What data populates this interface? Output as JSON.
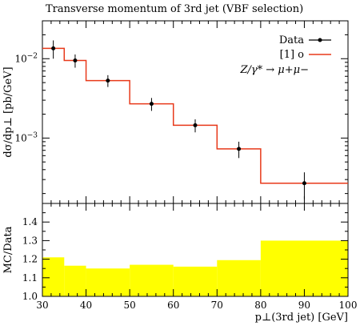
{
  "chart_data": [
    {
      "type": "line",
      "title": "Transverse momentum of 3rd jet (VBF selection)",
      "ylabel": "dσ/dp⊥ [pb/GeV]",
      "xlabel": "p⊥(3rd jet) [GeV]",
      "xlim": [
        30,
        100
      ],
      "yscale": "log",
      "ylim": [
        0.00015,
        0.03
      ],
      "y_ticklabels": [
        "10^-3",
        "10^-2"
      ],
      "legend_position": "top-right",
      "annotation": "Z/γ* → μ+μ−",
      "series": [
        {
          "name": "Data",
          "style": "points-with-errors",
          "color": "#000000",
          "x": [
            32.5,
            37.5,
            45,
            55,
            65,
            75,
            90
          ],
          "y": [
            0.0135,
            0.0095,
            0.0053,
            0.0027,
            0.00145,
            0.00073,
            0.00027
          ],
          "err": [
            0.0035,
            0.0018,
            0.0009,
            0.0005,
            0.00027,
            0.00017,
            0.0001
          ]
        },
        {
          "name": "[1] o",
          "style": "step",
          "color": "#e8391a",
          "bin_edges": [
            30,
            35,
            40,
            50,
            60,
            70,
            80,
            100
          ],
          "y": [
            0.0135,
            0.0095,
            0.0053,
            0.0027,
            0.00145,
            0.00073,
            0.00027
          ]
        }
      ]
    },
    {
      "type": "bar",
      "ylabel": "MC/Data",
      "xlabel": "p⊥(3rd jet) [GeV]",
      "xlim": [
        30,
        100
      ],
      "ylim": [
        1.0,
        1.5
      ],
      "x_ticks": [
        30,
        40,
        50,
        60,
        70,
        80,
        90,
        100
      ],
      "y_ticks": [
        1.0,
        1.1,
        1.2,
        1.3,
        1.4
      ],
      "series": [
        {
          "name": "ratio band",
          "color": "#ffff00",
          "bin_edges": [
            30,
            35,
            40,
            50,
            60,
            70,
            80,
            100
          ],
          "values": [
            1.21,
            1.165,
            1.15,
            1.17,
            1.16,
            1.195,
            1.3
          ]
        }
      ]
    }
  ]
}
